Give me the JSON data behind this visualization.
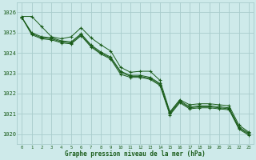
{
  "title": "Graphe pression niveau de la mer (hPa)",
  "background_color": "#ceeaea",
  "grid_color": "#a8cccc",
  "line_color": "#1a5c1a",
  "x_ticks": [
    0,
    1,
    2,
    3,
    4,
    5,
    6,
    7,
    8,
    9,
    10,
    11,
    12,
    13,
    14,
    15,
    16,
    17,
    18,
    19,
    20,
    21,
    22,
    23
  ],
  "ylim": [
    1019.5,
    1026.5
  ],
  "ytick_values": [
    1020,
    1021,
    1022,
    1023,
    1024,
    1025,
    1026
  ],
  "series1": [
    1025.8,
    1025.8,
    1025.3,
    1024.8,
    1024.7,
    1024.8,
    1025.25,
    1024.75,
    1024.4,
    1024.1,
    1023.3,
    1023.05,
    1023.1,
    1023.1,
    1022.65,
    1021.1,
    1021.7,
    1021.45,
    1021.5,
    1021.5,
    1021.45,
    1021.4,
    1020.45,
    1020.1
  ],
  "series2": [
    1025.75,
    1025.0,
    1024.8,
    1024.75,
    1024.6,
    1024.55,
    1024.95,
    1024.4,
    1024.05,
    1023.8,
    1023.1,
    1022.9,
    1022.9,
    1022.8,
    1022.5,
    1021.05,
    1021.65,
    1021.35,
    1021.4,
    1021.4,
    1021.35,
    1021.3,
    1020.35,
    1020.05
  ],
  "series3": [
    1025.75,
    1024.95,
    1024.75,
    1024.7,
    1024.55,
    1024.5,
    1024.9,
    1024.35,
    1024.0,
    1023.75,
    1023.05,
    1022.85,
    1022.85,
    1022.75,
    1022.45,
    1021.0,
    1021.6,
    1021.3,
    1021.35,
    1021.35,
    1021.3,
    1021.25,
    1020.3,
    1020.0
  ],
  "series4": [
    1025.75,
    1024.9,
    1024.7,
    1024.65,
    1024.5,
    1024.45,
    1024.85,
    1024.3,
    1023.95,
    1023.7,
    1022.95,
    1022.8,
    1022.8,
    1022.7,
    1022.4,
    1020.95,
    1021.55,
    1021.25,
    1021.3,
    1021.3,
    1021.25,
    1021.2,
    1020.25,
    1019.95
  ]
}
